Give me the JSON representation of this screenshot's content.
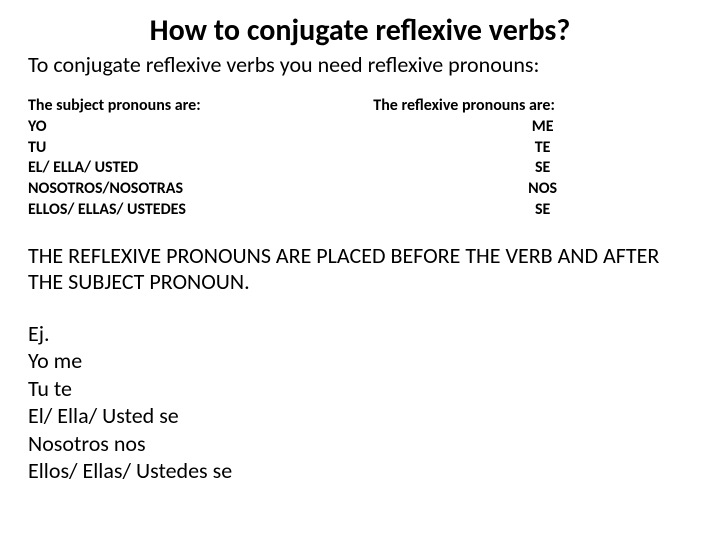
{
  "title": "How to conjugate reflexive verbs?",
  "subtitle": "To conjugate reflexive verbs you need reflexive pronouns:",
  "leftColumn": {
    "header": "The subject pronouns are:",
    "items": [
      "YO",
      "TU",
      "EL/ ELLA/ USTED",
      "NOSOTROS/NOSOTRAS",
      "ELLOS/ ELLAS/ USTEDES"
    ]
  },
  "rightColumn": {
    "header": "The reflexive pronouns are:",
    "items": [
      "ME",
      "TE",
      "SE",
      "NOS",
      "SE"
    ]
  },
  "rule": "THE REFLEXIVE PRONOUNS ARE PLACED BEFORE THE VERB AND AFTER THE SUBJECT PRONOUN.",
  "examples": {
    "label": "Ej.",
    "items": [
      "Yo me",
      "Tu te",
      "El/ Ella/ Usted se",
      "Nosotros nos",
      "Ellos/ Ellas/ Ustedes se"
    ]
  },
  "styling": {
    "background_color": "#ffffff",
    "text_color": "#000000",
    "title_fontsize": 30,
    "subtitle_fontsize": 22,
    "column_fontsize": 16,
    "rule_fontsize": 22,
    "examples_fontsize": 22,
    "font_family": "Calibri"
  }
}
